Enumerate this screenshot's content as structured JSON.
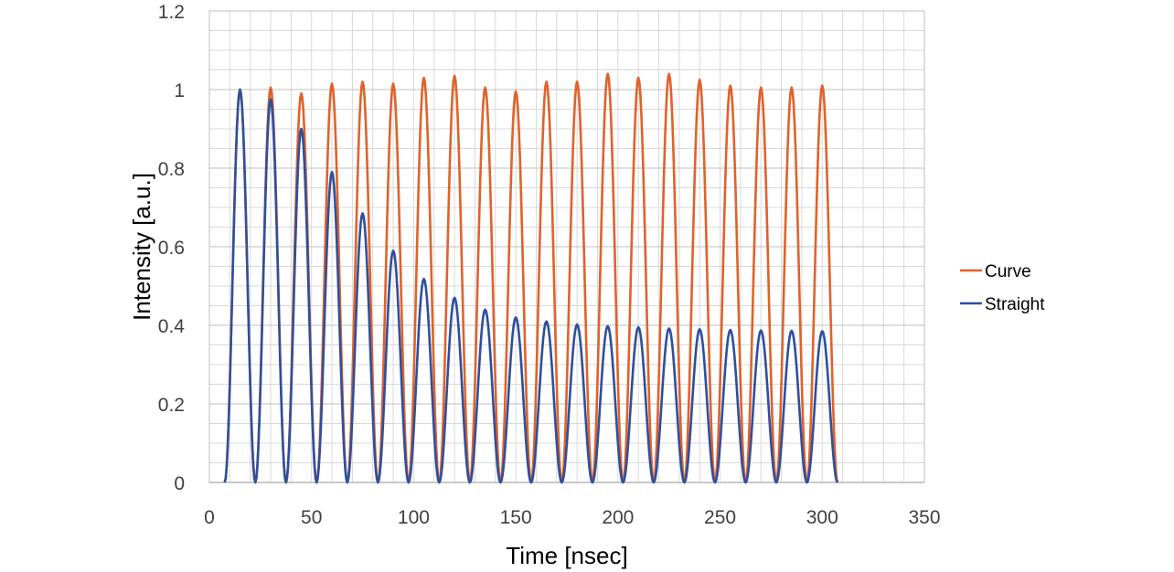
{
  "chart_data": {
    "type": "line",
    "title": "",
    "xlabel": "Time [nsec]",
    "ylabel": "Intensity [a.u.]",
    "xlim": [
      0,
      350
    ],
    "ylim": [
      0,
      1.2
    ],
    "x_ticks": [
      0,
      50,
      100,
      150,
      200,
      250,
      300,
      350
    ],
    "x_tick_labels": [
      "0",
      "50",
      "100",
      "150",
      "200",
      "250",
      "300",
      "350"
    ],
    "y_ticks": [
      0,
      0.2,
      0.4,
      0.6,
      0.8,
      1.0,
      1.2
    ],
    "y_tick_labels": [
      "0",
      "0.2",
      "0.4",
      "0.6",
      "0.8",
      "1",
      "1.2"
    ],
    "grid": true,
    "minor_grid": true,
    "legend_position": "right",
    "pulse_peak_times": [
      15,
      30,
      45,
      60,
      75,
      90,
      105,
      120,
      135,
      150,
      165,
      180,
      195,
      210,
      225,
      240,
      255,
      270,
      285,
      300
    ],
    "pulse_start": 7.5,
    "pulse_period": 15,
    "series": [
      {
        "name": "Curve",
        "color": "#E0622A",
        "peaks": [
          1.0,
          1.005,
          0.99,
          1.015,
          1.02,
          1.015,
          1.03,
          1.035,
          1.005,
          0.995,
          1.02,
          1.02,
          1.04,
          1.03,
          1.04,
          1.025,
          1.01,
          1.005,
          1.005,
          1.01
        ]
      },
      {
        "name": "Straight",
        "color": "#2E4F9E",
        "peaks": [
          1.0,
          0.975,
          0.9,
          0.79,
          0.685,
          0.59,
          0.518,
          0.47,
          0.44,
          0.42,
          0.41,
          0.402,
          0.398,
          0.395,
          0.392,
          0.39,
          0.388,
          0.387,
          0.386,
          0.385
        ]
      }
    ]
  }
}
